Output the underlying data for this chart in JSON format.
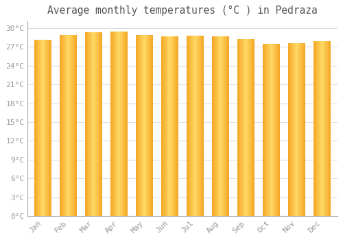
{
  "title": "Average monthly temperatures (°C ) in Pedraza",
  "months": [
    "Jan",
    "Feb",
    "Mar",
    "Apr",
    "May",
    "Jun",
    "Jul",
    "Aug",
    "Sep",
    "Oct",
    "Nov",
    "Dec"
  ],
  "values": [
    28.0,
    28.8,
    29.2,
    29.3,
    28.8,
    28.5,
    28.7,
    28.6,
    28.1,
    27.4,
    27.5,
    27.8
  ],
  "bar_color_center": "#FFD966",
  "bar_color_edge": "#F5A623",
  "background_color": "#FFFFFF",
  "grid_color": "#DDDDDD",
  "text_color": "#999999",
  "title_color": "#555555",
  "ylim": [
    0,
    31
  ],
  "yticks": [
    0,
    3,
    6,
    9,
    12,
    15,
    18,
    21,
    24,
    27,
    30
  ],
  "title_fontsize": 10.5,
  "tick_fontsize": 8
}
